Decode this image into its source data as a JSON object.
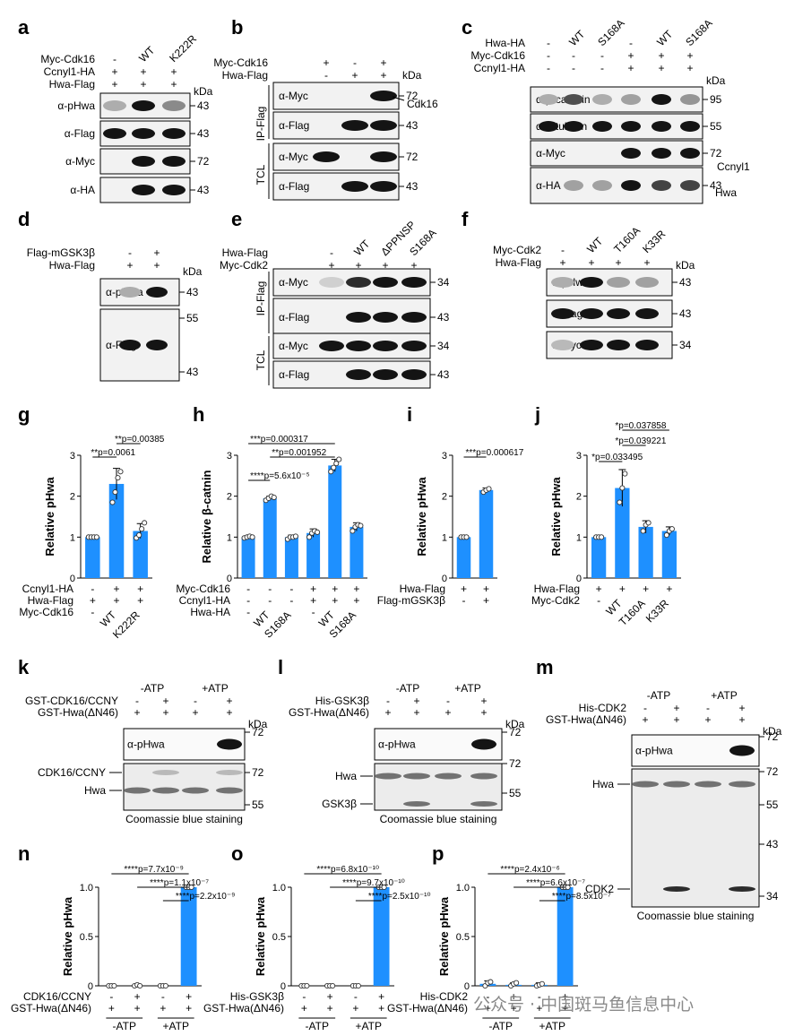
{
  "panels": {
    "a": {
      "letter": "a",
      "rows": [
        {
          "label": "Myc-Cdk16",
          "marks": [
            "-",
            "WT",
            "K222R"
          ]
        },
        {
          "label": "Ccnyl1-HA",
          "marks": [
            "+",
            "+",
            "+"
          ]
        },
        {
          "label": "Hwa-Flag",
          "marks": [
            "+",
            "+",
            "+"
          ]
        }
      ],
      "kda": "kDa",
      "blots": [
        {
          "label": "α-pHwa",
          "mw": "43",
          "bands": [
            0.35,
            1.0,
            0.5
          ]
        },
        {
          "label": "α-Flag",
          "mw": "43",
          "bands": [
            1,
            1,
            1
          ]
        },
        {
          "label": "α-Myc",
          "mw": "72",
          "bands": [
            0,
            1,
            1
          ]
        },
        {
          "label": "α-HA",
          "mw": "43",
          "bands": [
            0,
            1,
            1
          ]
        }
      ]
    },
    "b": {
      "letter": "b",
      "rows": [
        {
          "label": "Myc-Cdk16",
          "marks": [
            "+",
            "-",
            "+"
          ]
        },
        {
          "label": "Hwa-Flag",
          "marks": [
            "-",
            "+",
            "+"
          ]
        }
      ],
      "kda": "kDa",
      "groups": [
        "IP-Flag",
        "TCL"
      ],
      "blots": [
        {
          "label": "α-Myc",
          "mw": "72",
          "extra": "Cdk16",
          "bands": [
            0,
            0,
            1
          ]
        },
        {
          "label": "α-Flag",
          "mw": "43",
          "bands": [
            0,
            1,
            1
          ]
        },
        {
          "label": "α-Myc",
          "mw": "72",
          "bands": [
            1,
            0,
            1
          ]
        },
        {
          "label": "α-Flag",
          "mw": "43",
          "bands": [
            0,
            1,
            1
          ]
        }
      ]
    },
    "c": {
      "letter": "c",
      "rows": [
        {
          "label": "Hwa-HA",
          "marks": [
            "-",
            "WT",
            "S168A",
            "-",
            "WT",
            "S168A"
          ]
        },
        {
          "label": "Myc-Cdk16",
          "marks": [
            "-",
            "-",
            "-",
            "+",
            "+",
            "+"
          ]
        },
        {
          "label": "Ccnyl1-HA",
          "marks": [
            "-",
            "-",
            "-",
            "+",
            "+",
            "+"
          ]
        }
      ],
      "kda": "kDa",
      "blots": [
        {
          "label": "α-β-catenin",
          "mw": "95",
          "bands": [
            0.35,
            0.75,
            0.35,
            0.4,
            1.0,
            0.45
          ]
        },
        {
          "label": "α-α-tubulin",
          "mw": "55",
          "bands": [
            1,
            1,
            1,
            1,
            1,
            1
          ]
        },
        {
          "label": "α-Myc",
          "mw": "72",
          "bands": [
            0,
            0,
            0,
            1,
            1,
            1
          ]
        },
        {
          "label": "α-HA",
          "mw": "43",
          "bands": [
            0,
            0.4,
            0.4,
            1,
            0.8,
            0.8
          ]
        }
      ],
      "annotations": [
        "Ccnyl1",
        "Hwa"
      ]
    },
    "d": {
      "letter": "d",
      "rows": [
        {
          "label": "Flag-mGSK3β",
          "marks": [
            "-",
            "+"
          ]
        },
        {
          "label": "Hwa-Flag",
          "marks": [
            "+",
            "+"
          ]
        }
      ],
      "kda": "kDa",
      "blots": [
        {
          "label": "α-pHwa",
          "mw": "43",
          "bands": [
            0.35,
            1.0
          ]
        },
        {
          "label": "α-Flag",
          "mw": [
            "55",
            "43"
          ],
          "bands": [
            1,
            1
          ]
        }
      ]
    },
    "e": {
      "letter": "e",
      "rows": [
        {
          "label": "Hwa-Flag",
          "marks": [
            "-",
            "WT",
            "ΔPPNSP",
            "S168A"
          ]
        },
        {
          "label": "Myc-Cdk2",
          "marks": [
            "+",
            "+",
            "+",
            "+"
          ]
        }
      ],
      "groups": [
        "IP-Flag",
        "TCL"
      ],
      "blots": [
        {
          "label": "α-Myc",
          "mw": "34",
          "bands": [
            0.2,
            0.9,
            1,
            1
          ]
        },
        {
          "label": "α-Flag",
          "mw": "43",
          "bands": [
            0,
            1,
            1,
            1
          ]
        },
        {
          "label": "α-Myc",
          "mw": "34",
          "bands": [
            1,
            1,
            1,
            1
          ]
        },
        {
          "label": "α-Flag",
          "mw": "43",
          "bands": [
            0,
            1,
            1,
            1
          ]
        }
      ]
    },
    "f": {
      "letter": "f",
      "rows": [
        {
          "label": "Myc-Cdk2",
          "marks": [
            "-",
            "WT",
            "T160A",
            "K33R"
          ]
        },
        {
          "label": "Hwa-Flag",
          "marks": [
            "+",
            "+",
            "+",
            "+"
          ]
        }
      ],
      "kda": "kDa",
      "blots": [
        {
          "label": "α-pHwa",
          "mw": "43",
          "bands": [
            0.35,
            1.0,
            0.4,
            0.4
          ]
        },
        {
          "label": "α-Flag",
          "mw": "43",
          "bands": [
            1,
            1,
            1,
            1
          ]
        },
        {
          "label": "α-Myc",
          "mw": "34",
          "bands": [
            0.3,
            1,
            1,
            1
          ]
        }
      ]
    },
    "k": {
      "letter": "k",
      "conditions": [
        "-ATP",
        "+ATP"
      ],
      "rows": [
        {
          "label": "GST-CDK16/CCNY",
          "marks": [
            "-",
            "+",
            "-",
            "+"
          ]
        },
        {
          "label": "GST-Hwa(ΔN46)",
          "marks": [
            "+",
            "+",
            "+",
            "+"
          ]
        }
      ],
      "kda": "kDa",
      "blot_label": "α-pHwa",
      "mw": [
        "72",
        "72",
        "55"
      ],
      "gel_labels": [
        "CDK16/CCNY",
        "Hwa"
      ],
      "caption": "Coomassie blue staining"
    },
    "l": {
      "letter": "l",
      "conditions": [
        "-ATP",
        "+ATP"
      ],
      "rows": [
        {
          "label": "His-GSK3β",
          "marks": [
            "-",
            "+",
            "-",
            "+"
          ]
        },
        {
          "label": "GST-Hwa(ΔN46)",
          "marks": [
            "+",
            "+",
            "+",
            "+"
          ]
        }
      ],
      "kda": "kDa",
      "blot_label": "α-pHwa",
      "mw": [
        "72",
        "72",
        "55"
      ],
      "gel_labels": [
        "Hwa",
        "GSK3β"
      ],
      "caption": "Coomassie blue staining"
    },
    "m": {
      "letter": "m",
      "conditions": [
        "-ATP",
        "+ATP"
      ],
      "rows": [
        {
          "label": "His-CDK2",
          "marks": [
            "-",
            "+",
            "-",
            "+"
          ]
        },
        {
          "label": "GST-Hwa(ΔN46)",
          "marks": [
            "+",
            "+",
            "+",
            "+"
          ]
        }
      ],
      "kda": "kDa",
      "blot_label": "α-pHwa",
      "mw": [
        "72",
        "72",
        "55",
        "43",
        "34"
      ],
      "gel_labels": [
        "Hwa",
        "CDK2"
      ],
      "caption": "Coomassie blue staining"
    }
  },
  "chart_data": [
    {
      "id": "g",
      "type": "bar",
      "ylabel": "Relative pHwa",
      "ylim": [
        0,
        3
      ],
      "yticks": [
        0,
        1,
        2,
        3
      ],
      "values": [
        1.0,
        2.3,
        1.15
      ],
      "errors": [
        0.02,
        0.38,
        0.18
      ],
      "points": [
        [
          1,
          1,
          1,
          1
        ],
        [
          1.85,
          2.1,
          2.45,
          2.6
        ],
        [
          0.98,
          1.05,
          1.2,
          1.35
        ]
      ],
      "colors": [
        "#1e90ff",
        "#1e90ff",
        "#1e90ff"
      ],
      "sig": [
        {
          "stars": "**",
          "p": "p=0.0061",
          "from": 0,
          "to": 1
        },
        {
          "stars": "**",
          "p": "p=0.00385",
          "from": 1,
          "to": 2
        }
      ],
      "rows": [
        {
          "label": "Ccnyl1-HA",
          "marks": [
            "-",
            "+",
            "+"
          ]
        },
        {
          "label": "Hwa-Flag",
          "marks": [
            "+",
            "+",
            "+"
          ]
        },
        {
          "label": "Myc-Cdk16",
          "marks": [
            "-",
            "WT",
            "K222R"
          ]
        }
      ]
    },
    {
      "id": "h",
      "type": "bar",
      "ylabel": "Relative β-catnin",
      "ylim": [
        0,
        3
      ],
      "yticks": [
        0,
        1,
        2,
        3
      ],
      "values": [
        1.0,
        1.95,
        1.0,
        1.1,
        2.75,
        1.25
      ],
      "errors": [
        0.03,
        0.05,
        0.05,
        0.1,
        0.15,
        0.1
      ],
      "points": [
        [
          0.98,
          1.0,
          1.02,
          1.0
        ],
        [
          1.9,
          1.95,
          2.0,
          1.97
        ],
        [
          0.95,
          1.0,
          1.0,
          1.02
        ],
        [
          1.0,
          1.1,
          1.15,
          1.12
        ],
        [
          2.6,
          2.7,
          2.8,
          2.9
        ],
        [
          1.15,
          1.25,
          1.3,
          1.28
        ]
      ],
      "colors": [
        "#1e90ff",
        "#1e90ff",
        "#1e90ff",
        "#1e90ff",
        "#1e90ff",
        "#1e90ff"
      ],
      "sig": [
        {
          "stars": "****",
          "p": "p=5.6x10⁻⁵",
          "from": 0,
          "to": 1
        },
        {
          "stars": "**",
          "p": "p=0.001952",
          "from": 1,
          "to": 4
        },
        {
          "stars": "***",
          "p": "p=0.000317",
          "from": 0,
          "to": 4
        }
      ],
      "rows": [
        {
          "label": "Myc-Cdk16",
          "marks": [
            "-",
            "-",
            "-",
            "+",
            "+",
            "+"
          ]
        },
        {
          "label": "Ccnyl1-HA",
          "marks": [
            "-",
            "-",
            "-",
            "+",
            "+",
            "+"
          ]
        },
        {
          "label": "Hwa-HA",
          "marks": [
            "-",
            "WT",
            "S168A",
            "-",
            "WT",
            "S168A"
          ]
        }
      ]
    },
    {
      "id": "i",
      "type": "bar",
      "ylabel": "Relative pHwa",
      "ylim": [
        0,
        3
      ],
      "yticks": [
        0,
        1,
        2,
        3
      ],
      "values": [
        1.0,
        2.15
      ],
      "errors": [
        0.02,
        0.05
      ],
      "points": [
        [
          1,
          1,
          1
        ],
        [
          2.1,
          2.15,
          2.18
        ]
      ],
      "colors": [
        "#1e90ff",
        "#1e90ff"
      ],
      "sig": [
        {
          "stars": "***",
          "p": "p=0.000617",
          "from": 0,
          "to": 1
        }
      ],
      "rows": [
        {
          "label": "Hwa-Flag",
          "marks": [
            "+",
            "+"
          ]
        },
        {
          "label": "Flag-mGSK3β",
          "marks": [
            "-",
            "+"
          ]
        }
      ]
    },
    {
      "id": "j",
      "type": "bar",
      "ylabel": "Relative pHwa",
      "ylim": [
        0,
        3
      ],
      "yticks": [
        0,
        1,
        2,
        3
      ],
      "values": [
        1.0,
        2.2,
        1.25,
        1.15
      ],
      "errors": [
        0.02,
        0.45,
        0.15,
        0.1
      ],
      "points": [
        [
          1,
          1,
          1
        ],
        [
          1.85,
          2.2,
          2.55
        ],
        [
          1.15,
          1.3,
          1.35
        ],
        [
          1.05,
          1.15,
          1.2
        ]
      ],
      "colors": [
        "#1e90ff",
        "#1e90ff",
        "#1e90ff",
        "#1e90ff"
      ],
      "sig": [
        {
          "stars": "*",
          "p": "p=0.033495",
          "from": 0,
          "to": 1
        },
        {
          "stars": "*",
          "p": "p=0.039221",
          "from": 1,
          "to": 2
        },
        {
          "stars": "*",
          "p": "p=0.037858",
          "from": 1,
          "to": 3
        }
      ],
      "rows": [
        {
          "label": "Hwa-Flag",
          "marks": [
            "+",
            "+",
            "+",
            "+"
          ]
        },
        {
          "label": "Myc-Cdk2",
          "marks": [
            "-",
            "WT",
            "T160A",
            "K33R"
          ]
        }
      ]
    },
    {
      "id": "n",
      "type": "bar",
      "ylabel": "Relative pHwa",
      "ylim": [
        0,
        1
      ],
      "yticks": [
        0,
        0.5,
        1.0
      ],
      "ytick_labels": [
        "0",
        "0.5",
        "1.0"
      ],
      "values": [
        0.0,
        0.0,
        0.0,
        1.0
      ],
      "errors": [
        0,
        0,
        0,
        0.01
      ],
      "points": [
        [
          0,
          0,
          0
        ],
        [
          0,
          0.01,
          0
        ],
        [
          0,
          0,
          0
        ],
        [
          1,
          1,
          1
        ]
      ],
      "colors": [
        "#1e90ff",
        "#1e90ff",
        "#1e90ff",
        "#1e90ff"
      ],
      "sig": [
        {
          "stars": "****",
          "p": "p=7.7x10⁻⁹",
          "from": 0,
          "to": 3
        },
        {
          "stars": "****",
          "p": "p=1.1x10⁻⁷",
          "from": 1,
          "to": 3
        },
        {
          "stars": "****",
          "p": "p=2.2x10⁻⁹",
          "from": 2,
          "to": 3
        }
      ],
      "rows": [
        {
          "label": "CDK16/CCNY",
          "marks": [
            "-",
            "+",
            "-",
            "+"
          ]
        },
        {
          "label": "GST-Hwa(ΔN46)",
          "marks": [
            "+",
            "+",
            "+",
            "+"
          ]
        }
      ],
      "groups": [
        "-ATP",
        "+ATP"
      ]
    },
    {
      "id": "o",
      "type": "bar",
      "ylabel": "Relative pHwa",
      "ylim": [
        0,
        1
      ],
      "yticks": [
        0,
        0.5,
        1.0
      ],
      "ytick_labels": [
        "0",
        "0.5",
        "1.0"
      ],
      "values": [
        0.0,
        0.0,
        0.0,
        1.0
      ],
      "errors": [
        0,
        0,
        0,
        0.01
      ],
      "points": [
        [
          0,
          0,
          0
        ],
        [
          0,
          0,
          0
        ],
        [
          0,
          0,
          0
        ],
        [
          1,
          1,
          1
        ]
      ],
      "colors": [
        "#1e90ff",
        "#1e90ff",
        "#1e90ff",
        "#1e90ff"
      ],
      "sig": [
        {
          "stars": "****",
          "p": "p=6.8x10⁻¹⁰",
          "from": 0,
          "to": 3
        },
        {
          "stars": "****",
          "p": "p=9.7x10⁻¹⁰",
          "from": 1,
          "to": 3
        },
        {
          "stars": "****",
          "p": "p=2.5x10⁻¹⁰",
          "from": 2,
          "to": 3
        }
      ],
      "rows": [
        {
          "label": "His-GSK3β",
          "marks": [
            "-",
            "+",
            "-",
            "+"
          ]
        },
        {
          "label": "GST-Hwa(ΔN46)",
          "marks": [
            "+",
            "+",
            "+",
            "+"
          ]
        }
      ],
      "groups": [
        "-ATP",
        "+ATP"
      ]
    },
    {
      "id": "p",
      "type": "bar",
      "ylabel": "Relative pHwa",
      "ylim": [
        0,
        1
      ],
      "yticks": [
        0,
        0.5,
        1.0
      ],
      "ytick_labels": [
        "0",
        "0.5",
        "1.0"
      ],
      "values": [
        0.02,
        0.01,
        0.01,
        1.0
      ],
      "errors": [
        0.03,
        0.02,
        0.02,
        0.01
      ],
      "points": [
        [
          0,
          0.03,
          0.04
        ],
        [
          0,
          0.02,
          0.03
        ],
        [
          0,
          0.01,
          0.02
        ],
        [
          1,
          1,
          1
        ]
      ],
      "colors": [
        "#1e90ff",
        "#1e90ff",
        "#1e90ff",
        "#1e90ff"
      ],
      "sig": [
        {
          "stars": "****",
          "p": "p=2.4x10⁻⁶",
          "from": 0,
          "to": 3
        },
        {
          "stars": "****",
          "p": "p=6.6x10⁻⁷",
          "from": 1,
          "to": 3
        },
        {
          "stars": "****",
          "p": "p=8.5x10⁻⁷",
          "from": 2,
          "to": 3
        }
      ],
      "rows": [
        {
          "label": "His-CDK2",
          "marks": [
            "-",
            "+",
            "-",
            "+"
          ]
        },
        {
          "label": "GST-Hwa(ΔN46)",
          "marks": [
            "+",
            "+",
            "+",
            "+"
          ]
        }
      ],
      "groups": [
        "-ATP",
        "+ATP"
      ]
    }
  ],
  "watermark": "公众号 · 中国斑马鱼信息中心"
}
